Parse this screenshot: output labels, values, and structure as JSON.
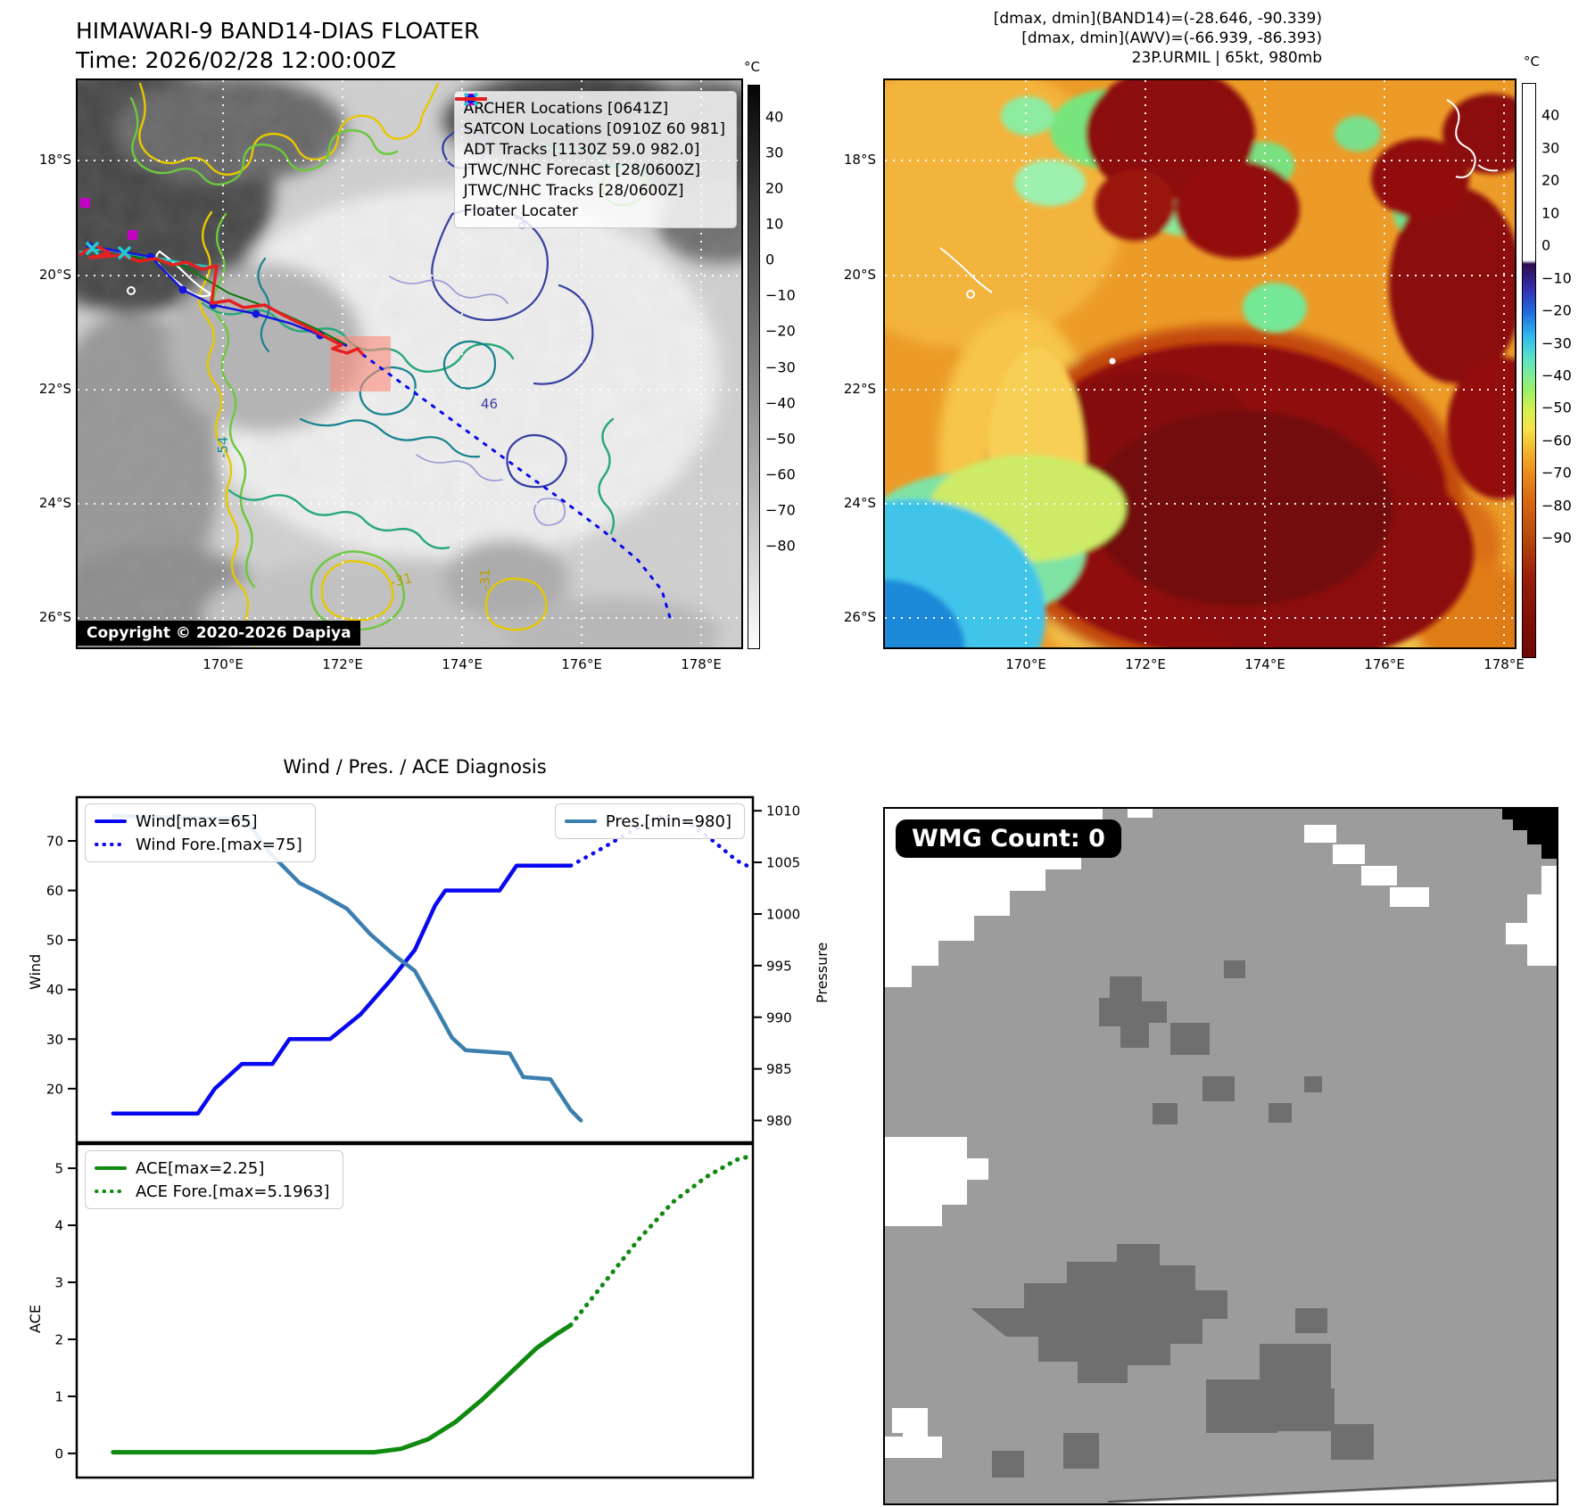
{
  "header": {
    "title_line1": "HIMAWARI-9 BAND14-DIAS FLOATER",
    "title_line2": "Time: 2026/02/28 12:00:00Z",
    "info_line1": "[dmax, dmin](BAND14)=(-28.646, -90.339)",
    "info_line2": "[dmax, dmin](AWV)=(-66.939, -86.393)",
    "info_line3": "23P.URMIL | 65kt, 980mb"
  },
  "left_map": {
    "lat_ticks": [
      "18°S",
      "20°S",
      "22°S",
      "24°S",
      "26°S"
    ],
    "lon_ticks": [
      "170°E",
      "172°E",
      "174°E",
      "176°E",
      "178°E"
    ],
    "colorbar": {
      "unit": "°C",
      "ticks": [
        40,
        30,
        20,
        10,
        0,
        -10,
        -20,
        -30,
        -40,
        -50,
        -60,
        -70,
        -80
      ]
    },
    "legend": [
      {
        "label": "ARCHER Locations [0641Z]",
        "marker": "square",
        "color": "#c400c4"
      },
      {
        "label": "SATCON Locations [0910Z 60 981]",
        "marker": "x",
        "color": "#22cccc"
      },
      {
        "label": "ADT Tracks [1130Z 59.0 982.0]",
        "marker": "line",
        "color": "#0a7a0a"
      },
      {
        "label": "JTWC/NHC Forecast [28/0600Z]",
        "marker": "dotted",
        "color": "#0808f0"
      },
      {
        "label": "JTWC/NHC Tracks [28/0600Z]",
        "marker": "line-marker",
        "color": "#0808f0"
      },
      {
        "label": "Floater Locater",
        "marker": "line",
        "color": "#e62020"
      }
    ],
    "copyright": "Copyright © 2020-2026 Dapiya",
    "contour_labels": [
      "-54",
      "-31",
      "-31",
      "76",
      "46"
    ]
  },
  "right_map": {
    "lat_ticks": [
      "18°S",
      "20°S",
      "22°S",
      "24°S",
      "26°S"
    ],
    "lon_ticks": [
      "170°E",
      "172°E",
      "174°E",
      "176°E",
      "178°E"
    ],
    "colorbar": {
      "unit": "°C",
      "ticks": [
        40,
        30,
        20,
        10,
        0,
        -10,
        -20,
        -30,
        -40,
        -50,
        -60,
        -70,
        -80,
        -90
      ]
    }
  },
  "wmg_panel": {
    "badge": "WMG Count: 0"
  },
  "chart_data": {
    "type": "line",
    "section_title": "Wind / Pres. / ACE Diagnosis",
    "panels": [
      {
        "id": "windpres",
        "ylabel": "Wind",
        "y2label": "Pressure",
        "ylim": [
          9,
          79
        ],
        "y2lim": [
          977.8,
          1011.4
        ],
        "yticks": [
          20,
          30,
          40,
          50,
          60,
          70
        ],
        "y2ticks": [
          980,
          985,
          990,
          995,
          1000,
          1005,
          1010
        ],
        "series": [
          {
            "name": "Wind[max=65]",
            "axis": "left",
            "style": "solid",
            "color": "#0808f0",
            "width": 4.5,
            "points": [
              [
                0.055,
                15
              ],
              [
                0.18,
                15
              ],
              [
                0.205,
                20
              ],
              [
                0.245,
                25
              ],
              [
                0.29,
                25
              ],
              [
                0.315,
                30
              ],
              [
                0.375,
                30
              ],
              [
                0.42,
                35
              ],
              [
                0.465,
                42
              ],
              [
                0.5,
                48
              ],
              [
                0.53,
                57
              ],
              [
                0.545,
                60
              ],
              [
                0.625,
                60
              ],
              [
                0.65,
                65
              ],
              [
                0.73,
                65
              ]
            ]
          },
          {
            "name": "Wind Fore.[max=75]",
            "axis": "left",
            "style": "dotted",
            "color": "#0808f0",
            "width": 4.5,
            "points": [
              [
                0.73,
                65
              ],
              [
                0.77,
                68
              ],
              [
                0.82,
                72
              ],
              [
                0.865,
                75
              ],
              [
                0.9,
                74
              ],
              [
                0.94,
                70
              ],
              [
                0.975,
                66
              ],
              [
                0.99,
                65
              ]
            ]
          },
          {
            "name": "Pres.[min=980]",
            "axis": "right",
            "style": "solid",
            "color": "#3a7fb0",
            "width": 4.5,
            "points": [
              [
                0.055,
                1009.5
              ],
              [
                0.25,
                1009.2
              ],
              [
                0.285,
                1006
              ],
              [
                0.33,
                1003
              ],
              [
                0.36,
                1002
              ],
              [
                0.4,
                1000.5
              ],
              [
                0.435,
                998
              ],
              [
                0.47,
                996
              ],
              [
                0.5,
                994.5
              ],
              [
                0.53,
                991
              ],
              [
                0.555,
                988
              ],
              [
                0.575,
                986.8
              ],
              [
                0.64,
                986.5
              ],
              [
                0.66,
                984.2
              ],
              [
                0.7,
                984
              ],
              [
                0.73,
                981
              ],
              [
                0.745,
                980
              ]
            ]
          }
        ],
        "legend_left": [
          "Wind[max=65]",
          "Wind Fore.[max=75]"
        ],
        "legend_right": [
          "Pres.[min=980]"
        ]
      },
      {
        "id": "ace",
        "ylabel": "ACE",
        "ylim": [
          -0.44,
          5.44
        ],
        "yticks": [
          0,
          1,
          2,
          3,
          4,
          5
        ],
        "series": [
          {
            "name": "ACE[max=2.25]",
            "axis": "left",
            "style": "solid",
            "color": "#0f8a0f",
            "width": 5,
            "points": [
              [
                0.055,
                0.02
              ],
              [
                0.44,
                0.02
              ],
              [
                0.48,
                0.08
              ],
              [
                0.52,
                0.25
              ],
              [
                0.56,
                0.55
              ],
              [
                0.6,
                0.95
              ],
              [
                0.64,
                1.4
              ],
              [
                0.68,
                1.85
              ],
              [
                0.71,
                2.1
              ],
              [
                0.73,
                2.25
              ]
            ]
          },
          {
            "name": "ACE Fore.[max=5.1963]",
            "axis": "left",
            "style": "dotted",
            "color": "#0f8a0f",
            "width": 5,
            "points": [
              [
                0.73,
                2.25
              ],
              [
                0.78,
                3.0
              ],
              [
                0.83,
                3.75
              ],
              [
                0.88,
                4.4
              ],
              [
                0.93,
                4.85
              ],
              [
                0.975,
                5.15
              ],
              [
                0.99,
                5.1963
              ]
            ]
          }
        ],
        "legend_left": [
          "ACE[max=2.25]",
          "ACE Fore.[max=5.1963]"
        ]
      }
    ]
  }
}
